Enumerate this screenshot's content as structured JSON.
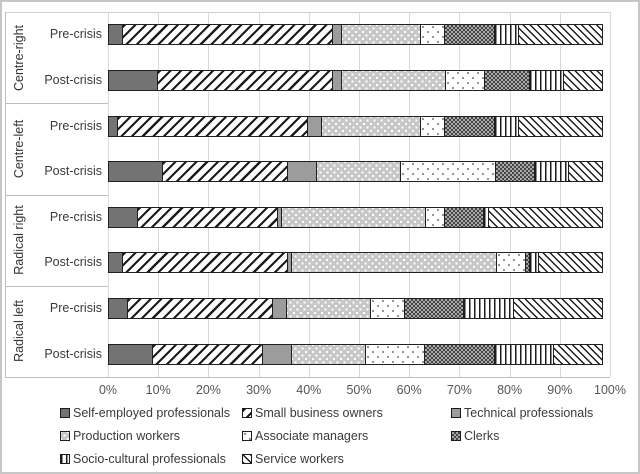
{
  "chart_data": {
    "type": "bar",
    "orientation": "horizontal-stacked",
    "title": "",
    "xlabel": "",
    "ylabel": "",
    "xlim": [
      0,
      100
    ],
    "grid": true,
    "legend_position": "bottom",
    "x_ticks": [
      {
        "v": 0,
        "label": "0%"
      },
      {
        "v": 10,
        "label": "10%"
      },
      {
        "v": 20,
        "label": "20%"
      },
      {
        "v": 30,
        "label": "30%"
      },
      {
        "v": 40,
        "label": "40%"
      },
      {
        "v": 50,
        "label": "50%"
      },
      {
        "v": 60,
        "label": "60%"
      },
      {
        "v": 70,
        "label": "70%"
      },
      {
        "v": 80,
        "label": "80%"
      },
      {
        "v": 90,
        "label": "90%"
      },
      {
        "v": 100,
        "label": "100%"
      }
    ],
    "series": [
      "Self-employed professionals",
      "Small business owners",
      "Technical professionals",
      "Production workers",
      "Associate managers",
      "Clerks",
      "Socio-cultural professionals",
      "Service workers"
    ],
    "series_patterns": [
      "solid-dark-gray",
      "wide-diagonal-stripes",
      "solid-medium-gray",
      "white-dots-on-gray",
      "gray-dots-on-white",
      "dark-checker-weave",
      "vertical-lines",
      "thin-back-diagonal-stripes"
    ],
    "groups": [
      "Centre-right",
      "Centre-left",
      "Radical right",
      "Radical left"
    ],
    "rows": [
      {
        "group": "Centre-right",
        "label": "Pre-crisis",
        "values": [
          3,
          42,
          2,
          16,
          5,
          10,
          5,
          17
        ]
      },
      {
        "group": "Centre-right",
        "label": "Post-crisis",
        "values": [
          10,
          35,
          2,
          21,
          8,
          9,
          7,
          8
        ]
      },
      {
        "group": "Centre-left",
        "label": "Pre-crisis",
        "values": [
          2,
          38,
          3,
          20,
          5,
          10,
          5,
          17
        ]
      },
      {
        "group": "Centre-left",
        "label": "Post-crisis",
        "values": [
          11,
          25,
          6,
          17,
          19,
          8,
          7,
          7
        ]
      },
      {
        "group": "Radical right",
        "label": "Pre-crisis",
        "values": [
          6,
          28,
          1,
          29,
          4,
          8,
          1,
          23
        ]
      },
      {
        "group": "Radical right",
        "label": "Post-crisis",
        "values": [
          3,
          33,
          1,
          41,
          6,
          1,
          2,
          13
        ]
      },
      {
        "group": "Radical left",
        "label": "Pre-crisis",
        "values": [
          4,
          29,
          3,
          17,
          7,
          12,
          10,
          18
        ]
      },
      {
        "group": "Radical left",
        "label": "Post-crisis",
        "values": [
          9,
          22,
          6,
          15,
          12,
          14,
          12,
          10
        ]
      }
    ]
  },
  "legend": {
    "items": [
      "Self-employed professionals",
      "Small business owners",
      "Technical professionals",
      "Production workers",
      "Associate managers",
      "Clerks",
      "Socio-cultural professionals",
      "Service workers"
    ]
  },
  "colors": {
    "dark_gray": "#737373",
    "medium_gray": "#9c9c9c",
    "light_gray": "#c7c7c7",
    "gridline": "#d9d9d9",
    "axis_line": "#bfbfbf",
    "segment_border": "#202020",
    "text": "#3a3a3a",
    "frame_border": "#c6c6c6"
  }
}
